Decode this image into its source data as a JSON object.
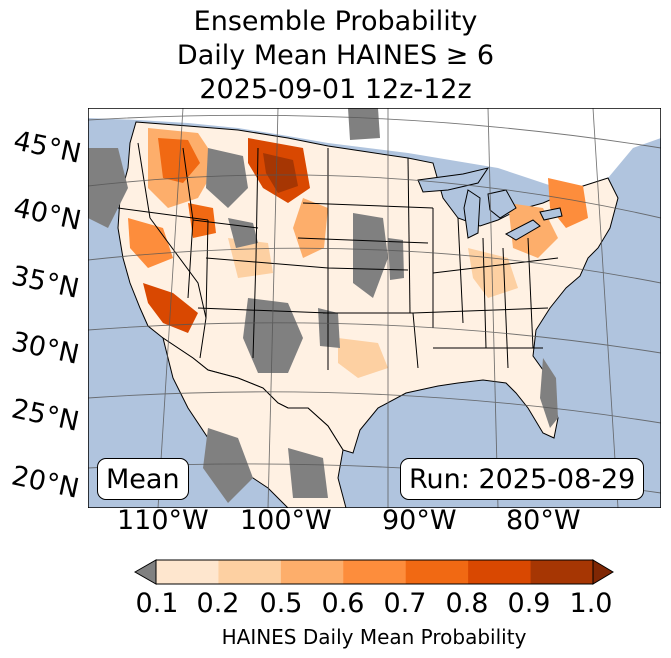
{
  "title": {
    "line1": "Ensemble Probability",
    "line2": "Daily Mean HAINES ≥ 6",
    "line3": "2025-09-01 12z-12z"
  },
  "map": {
    "lat_labels": [
      "45°N",
      "40°N",
      "35°N",
      "30°N",
      "25°N",
      "20°N"
    ],
    "lon_labels": [
      "110°W",
      "100°W",
      "90°W",
      "80°W"
    ],
    "stat_box": "Mean",
    "run_box": "Run: 2025-08-29",
    "colors": {
      "ocean": "#b0c4de",
      "land": "#ffffff",
      "missing": "#808080",
      "graticule": "#555555"
    }
  },
  "colorbar": {
    "ticks": [
      "0.1",
      "0.2",
      "0.5",
      "0.6",
      "0.7",
      "0.8",
      "0.9",
      "1.0"
    ],
    "label": "HAINES Daily Mean Probability",
    "colors": [
      "#fff5eb",
      "#fee6ce",
      "#fdd0a2",
      "#fdae6b",
      "#fd8d3c",
      "#f16913",
      "#d94801",
      "#a63603"
    ],
    "under_color": "#808080",
    "over_color": "#7f2704"
  }
}
